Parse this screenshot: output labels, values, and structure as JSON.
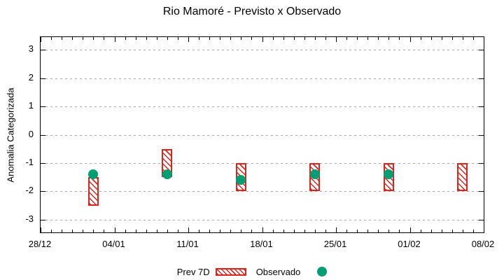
{
  "title": "Rio Mamoré - Previsto x Observado",
  "chart_data": {
    "type": "bar",
    "subtype": "range-bars-with-scatter-overlay",
    "title": "Rio Mamoré - Previsto x Observado",
    "xlabel": "",
    "ylabel": "Anomalia Categorizada",
    "ylim": [
      -3.45,
      3.45
    ],
    "yticks": [
      3,
      2,
      1,
      0,
      -1,
      -2,
      -3
    ],
    "x_tick_labels": [
      "28/12",
      "04/01",
      "11/01",
      "18/01",
      "25/01",
      "01/02",
      "08/02"
    ],
    "x_range_days": 42,
    "x_major_interval_days": 7,
    "grid": "horizontal-dashed",
    "legend_position": "bottom-center",
    "colors": {
      "bar_red": "#dc241c",
      "dot_green": "#009e73",
      "grid_gray": "#a8a8a8",
      "border_black": "#000000"
    },
    "series": [
      {
        "name": "Prev 7D",
        "type": "range-bar",
        "color": "#dc241c",
        "fill": "diagonal-hatch-on-white",
        "points": [
          {
            "date": "02/01",
            "day": 5,
            "low": -2.5,
            "high": -1.5
          },
          {
            "date": "09/01",
            "day": 12,
            "low": -1.5,
            "high": -0.5
          },
          {
            "date": "16/01",
            "day": 19,
            "low": -2.0,
            "high": -1.0
          },
          {
            "date": "23/01",
            "day": 26,
            "low": -2.0,
            "high": -1.0
          },
          {
            "date": "30/01",
            "day": 33,
            "low": -2.0,
            "high": -1.0
          },
          {
            "date": "06/02",
            "day": 40,
            "low": -2.0,
            "high": -1.0
          }
        ]
      },
      {
        "name": "Observado",
        "type": "scatter",
        "color": "#009e73",
        "points": [
          {
            "date": "02/01",
            "day": 5,
            "value": -1.4
          },
          {
            "date": "09/01",
            "day": 12,
            "value": -1.4
          },
          {
            "date": "16/01",
            "day": 19,
            "value": -1.6
          },
          {
            "date": "23/01",
            "day": 26,
            "value": -1.4
          },
          {
            "date": "30/01",
            "day": 33,
            "value": -1.4
          }
        ]
      }
    ]
  }
}
